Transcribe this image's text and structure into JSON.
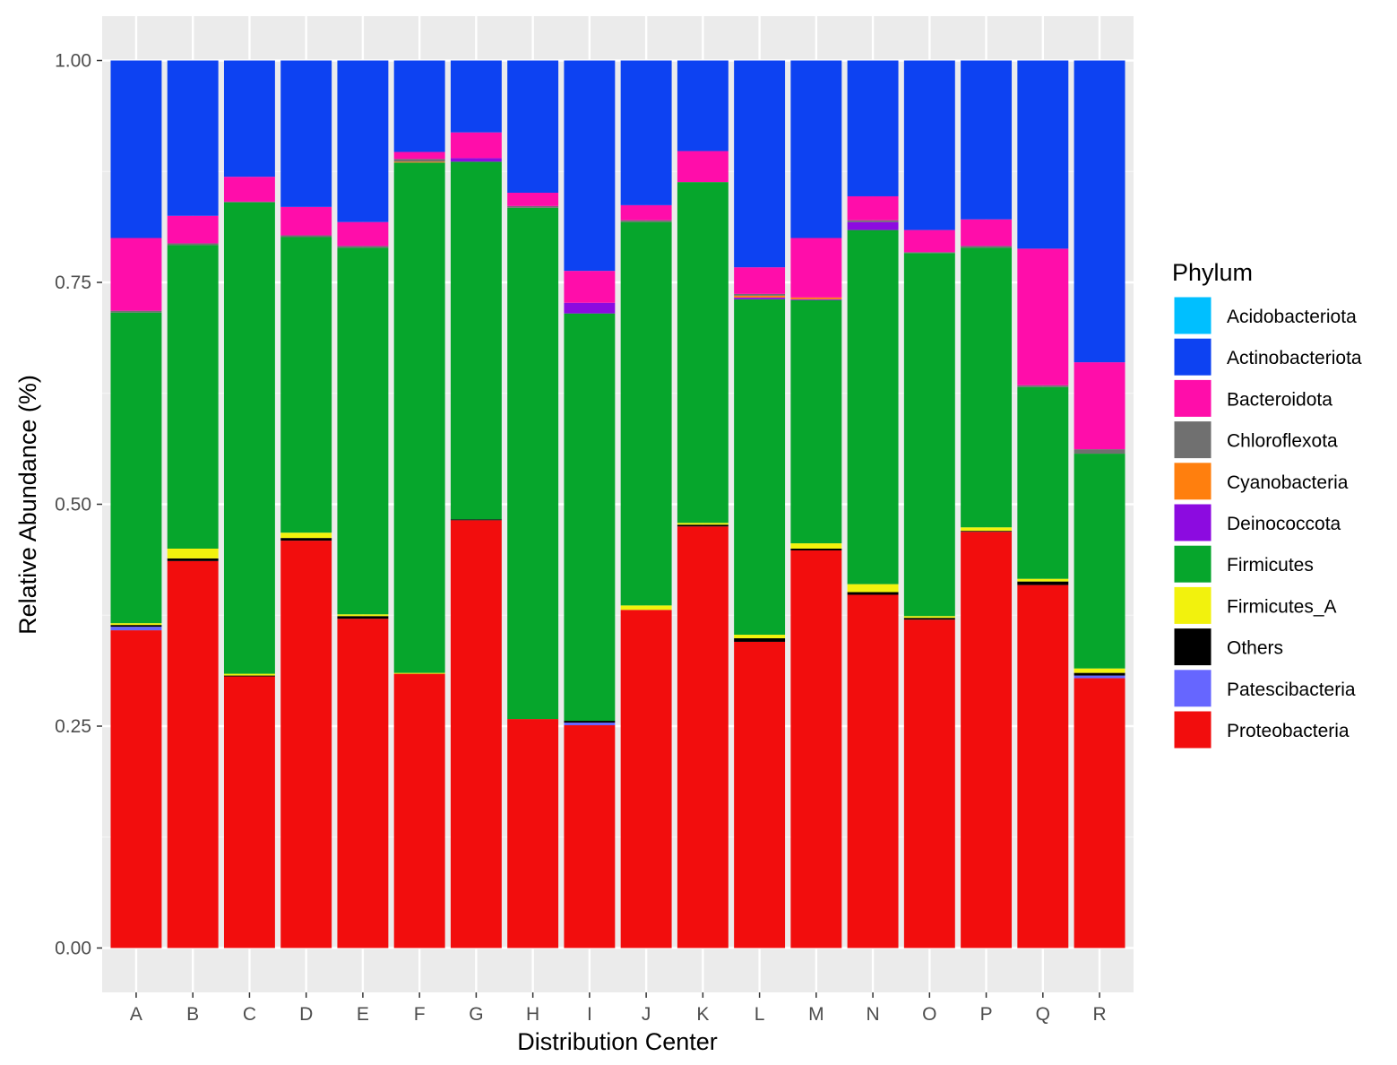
{
  "chart_data": {
    "type": "bar",
    "stacked": true,
    "title": "",
    "xlabel": "Distribution Center",
    "ylabel": "Relative Abundance (%)",
    "ylim": [
      -0.05,
      1.05
    ],
    "yticks": [
      "0.00",
      "0.25",
      "0.50",
      "0.75",
      "1.00"
    ],
    "grid": true,
    "legend_position": "right",
    "legend_title": "Phylum",
    "categories": [
      "A",
      "B",
      "C",
      "D",
      "E",
      "F",
      "G",
      "H",
      "I",
      "J",
      "K",
      "L",
      "M",
      "N",
      "O",
      "P",
      "Q",
      "R"
    ],
    "series": [
      {
        "name": "Proteobacteria",
        "color": "#F20D0D",
        "values": [
          0.358,
          0.436,
          0.306,
          0.459,
          0.371,
          0.309,
          0.482,
          0.258,
          0.251,
          0.381,
          0.475,
          0.345,
          0.448,
          0.398,
          0.37,
          0.469,
          0.409,
          0.304
        ]
      },
      {
        "name": "Patescibacteria",
        "color": "#6666FF",
        "values": [
          0.004,
          0.0,
          0.0,
          0.0,
          0.0,
          0.0,
          0.0,
          0.0,
          0.003,
          0.0,
          0.0,
          0.0,
          0.0,
          0.0,
          0.0,
          0.0,
          0.0,
          0.003
        ]
      },
      {
        "name": "Others",
        "color": "#000000",
        "values": [
          0.002,
          0.003,
          0.001,
          0.003,
          0.003,
          0.0,
          0.001,
          0.0,
          0.002,
          0.0,
          0.002,
          0.004,
          0.002,
          0.003,
          0.002,
          0.001,
          0.004,
          0.003
        ]
      },
      {
        "name": "Firmicutes_A",
        "color": "#F2F20D",
        "values": [
          0.002,
          0.011,
          0.002,
          0.006,
          0.002,
          0.001,
          0.0,
          0.0,
          0.0,
          0.005,
          0.002,
          0.004,
          0.006,
          0.009,
          0.002,
          0.004,
          0.003,
          0.005
        ]
      },
      {
        "name": "Firmicutes",
        "color": "#06A62C",
        "values": [
          0.35,
          0.342,
          0.531,
          0.333,
          0.413,
          0.575,
          0.403,
          0.576,
          0.459,
          0.432,
          0.384,
          0.378,
          0.274,
          0.399,
          0.409,
          0.315,
          0.216,
          0.242
        ]
      },
      {
        "name": "Deinococcota",
        "color": "#8C0BE0",
        "values": [
          0.0,
          0.0,
          0.0,
          0.0,
          0.0,
          0.0,
          0.004,
          0.0,
          0.012,
          0.0,
          0.0,
          0.002,
          0.001,
          0.009,
          0.0,
          0.0,
          0.0,
          0.0
        ]
      },
      {
        "name": "Cyanobacteria",
        "color": "#FF7F0E",
        "values": [
          0.0,
          0.0,
          0.0,
          0.0,
          0.0,
          0.001,
          0.0,
          0.0,
          0.0,
          0.0,
          0.0,
          0.002,
          0.002,
          0.0,
          0.0,
          0.0,
          0.0,
          0.0
        ]
      },
      {
        "name": "Chloroflexota",
        "color": "#707070",
        "values": [
          0.002,
          0.002,
          0.001,
          0.002,
          0.002,
          0.003,
          0.0,
          0.002,
          0.0,
          0.002,
          0.0,
          0.002,
          0.0,
          0.002,
          0.001,
          0.002,
          0.002,
          0.005
        ]
      },
      {
        "name": "Bacteroidota",
        "color": "#FF0DAA",
        "values": [
          0.082,
          0.031,
          0.028,
          0.032,
          0.027,
          0.008,
          0.029,
          0.015,
          0.036,
          0.017,
          0.035,
          0.03,
          0.067,
          0.027,
          0.025,
          0.03,
          0.154,
          0.098
        ]
      },
      {
        "name": "Actinobacteriota",
        "color": "#0D42F2",
        "values": [
          0.2,
          0.175,
          0.131,
          0.165,
          0.182,
          0.103,
          0.081,
          0.149,
          0.237,
          0.163,
          0.102,
          0.233,
          0.2,
          0.153,
          0.191,
          0.179,
          0.212,
          0.34
        ]
      },
      {
        "name": "Acidobacteriota",
        "color": "#00BFFF",
        "values": [
          0,
          0,
          0,
          0,
          0,
          0,
          0,
          0,
          0,
          0,
          0,
          0,
          0,
          0,
          0,
          0,
          0,
          0
        ]
      }
    ],
    "legend_order": [
      "Acidobacteriota",
      "Actinobacteriota",
      "Bacteroidota",
      "Chloroflexota",
      "Cyanobacteria",
      "Deinococcota",
      "Firmicutes",
      "Firmicutes_A",
      "Others",
      "Patescibacteria",
      "Proteobacteria"
    ]
  }
}
